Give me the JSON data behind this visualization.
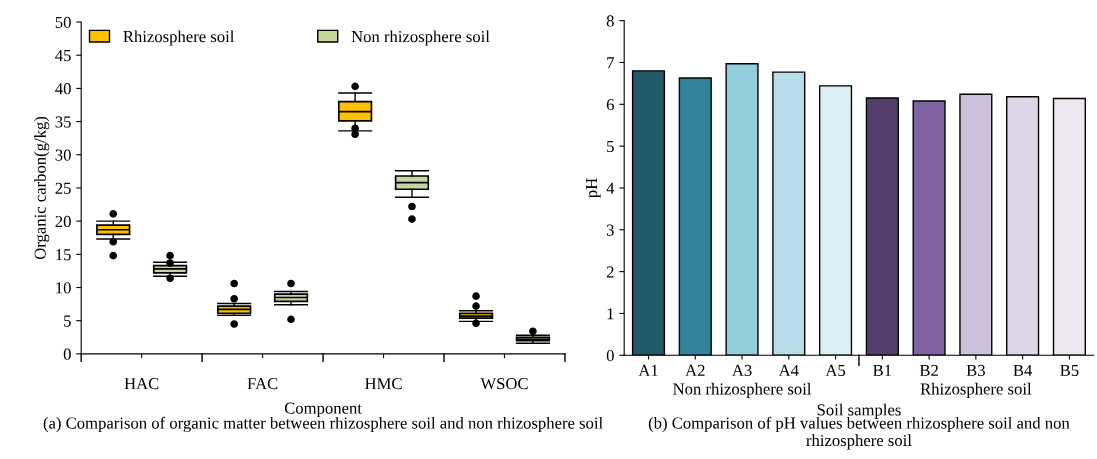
{
  "chart_data": [
    {
      "type": "box",
      "title": "(a) Comparison of organic matter between rhizosphere soil and non rhizosphere soil",
      "xlabel": "Component",
      "ylabel": "Organic carbon(g/kg)",
      "categories": [
        "HAC",
        "FAC",
        "HMC",
        "WSOC"
      ],
      "series": [
        {
          "name": "Rhizosphere soil",
          "color": "#ffc000",
          "boxes": [
            {
              "low": 17.3,
              "q1": 18.0,
              "median": 18.7,
              "q3": 19.4,
              "high": 20.0,
              "outliers": [
                21.1,
                16.9,
                14.8
              ]
            },
            {
              "low": 5.8,
              "q1": 6.1,
              "median": 6.7,
              "q3": 7.2,
              "high": 7.6,
              "outliers": [
                10.6,
                8.3,
                4.5
              ]
            },
            {
              "low": 33.6,
              "q1": 35.1,
              "median": 36.5,
              "q3": 38.0,
              "high": 39.3,
              "outliers": [
                40.3,
                34.0,
                33.1
              ]
            },
            {
              "low": 4.9,
              "q1": 5.4,
              "median": 5.7,
              "q3": 6.1,
              "high": 6.5,
              "outliers": [
                8.7,
                7.2,
                4.6
              ]
            }
          ]
        },
        {
          "name": "Non rhizosphere soil",
          "color": "#c4d79b",
          "boxes": [
            {
              "low": 11.7,
              "q1": 12.2,
              "median": 12.8,
              "q3": 13.3,
              "high": 13.8,
              "outliers": [
                14.8,
                13.7,
                11.4
              ]
            },
            {
              "low": 7.4,
              "q1": 7.9,
              "median": 8.5,
              "q3": 9.0,
              "high": 9.4,
              "outliers": [
                10.6,
                5.2
              ]
            },
            {
              "low": 23.6,
              "q1": 24.8,
              "median": 25.8,
              "q3": 26.8,
              "high": 27.6,
              "outliers": [
                22.2,
                20.3
              ]
            },
            {
              "low": 1.6,
              "q1": 2.0,
              "median": 2.2,
              "q3": 2.5,
              "high": 2.8,
              "outliers": [
                3.4
              ]
            }
          ]
        }
      ],
      "ylim": [
        0,
        50
      ],
      "yticks": [
        0,
        5,
        10,
        15,
        20,
        25,
        30,
        35,
        40,
        45,
        50
      ],
      "legend": "top left",
      "grid": false
    },
    {
      "type": "bar",
      "title": "(b) Comparison of pH values between rhizosphere soil and non rhizosphere soil",
      "xlabel": "Soil samples",
      "ylabel": "pH",
      "categories": [
        "A1",
        "A2",
        "A3",
        "A4",
        "A5",
        "B1",
        "B2",
        "B3",
        "B4",
        "B5"
      ],
      "values": [
        6.8,
        6.63,
        6.97,
        6.77,
        6.44,
        6.15,
        6.08,
        6.24,
        6.18,
        6.14
      ],
      "colors": [
        "#215968",
        "#31849b",
        "#92cddc",
        "#b7dee8",
        "#daeef3",
        "#543f6c",
        "#8064a2",
        "#ccc0da",
        "#ddd5e8",
        "#ebe6f0"
      ],
      "annotations": [
        "Non rhizosphere soil",
        "Rhizosphere soil"
      ],
      "ylim": [
        0,
        8
      ],
      "yticks": [
        0,
        1,
        2,
        3,
        4,
        5,
        6,
        7,
        8
      ],
      "grid": false
    }
  ]
}
